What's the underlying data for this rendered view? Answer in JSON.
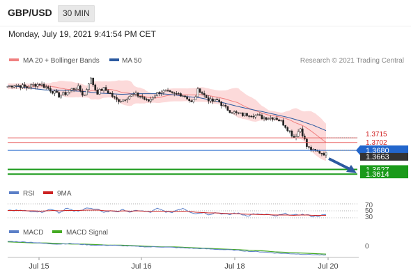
{
  "header": {
    "pair": "GBP/USD",
    "timeframe": "30 MIN"
  },
  "datetime": "Monday, July 19, 2021 9:41:54 PM CET",
  "copyright": "Research © 2021 Trading Central",
  "colors": {
    "bb": "#f08080",
    "ma50": "#2c5aa0",
    "res": "#e86060",
    "pivot": "#2266cc",
    "sup": "#1a9a1a",
    "current": "#333333",
    "rsi": "#5b7fc7",
    "rsi_ma": "#cc2222",
    "macd": "#5b7fc7",
    "signal": "#44aa22"
  },
  "chart_data": [
    {
      "type": "line",
      "legend": [
        "MA 20 + Bollinger Bands",
        "MA 50"
      ],
      "x_ticks": [
        "Jul 15",
        "Jul 16",
        "Jul 18",
        "Jul 20"
      ],
      "ylim": [
        1.3595,
        1.3905
      ],
      "price_anchors": [
        1.3858,
        1.3862,
        1.386,
        1.3855,
        1.3862,
        1.3865,
        1.3857,
        1.3845,
        1.3832,
        1.3838,
        1.385,
        1.3856,
        1.383,
        1.3882,
        1.384,
        1.3852,
        1.384,
        1.382,
        1.382,
        1.3831,
        1.3835,
        1.383,
        1.3815,
        1.3833,
        1.3845,
        1.3842,
        1.3835,
        1.3838,
        1.383,
        1.381,
        1.3852,
        1.383,
        1.3816,
        1.382,
        1.38,
        1.379,
        1.3782,
        1.3779,
        1.3781,
        1.3777,
        1.3772,
        1.3771,
        1.3772,
        1.376,
        1.374,
        1.3715,
        1.3742,
        1.369,
        1.3678,
        1.3675,
        1.367
      ],
      "ma50_anchors": [
        1.386,
        1.3857,
        1.3852,
        1.3848,
        1.3848,
        1.3846,
        1.3844,
        1.384,
        1.3838,
        1.3836,
        1.3838,
        1.3838,
        1.3838,
        1.3835,
        1.383,
        1.3827,
        1.382,
        1.3812,
        1.3803,
        1.3795,
        1.3788,
        1.378,
        1.3772,
        1.3762,
        1.375,
        1.3735
      ],
      "levels": [
        {
          "label": "1.3715",
          "value": 1.3715,
          "kind": "res"
        },
        {
          "label": "1.3702",
          "value": 1.3702,
          "kind": "res"
        },
        {
          "label": "1.3680",
          "value": 1.368,
          "kind": "pivot"
        },
        {
          "label": "1.3663",
          "value": 1.3663,
          "kind": "current"
        },
        {
          "label": "1.3627",
          "value": 1.3627,
          "kind": "sup"
        },
        {
          "label": "1.3614",
          "value": 1.3614,
          "kind": "sup"
        }
      ]
    },
    {
      "type": "line",
      "legend": [
        "RSI",
        "9MA"
      ],
      "levels": [
        "70",
        "50",
        "30"
      ],
      "ylim": [
        20,
        80
      ],
      "rsi": [
        52,
        50,
        54,
        48,
        50,
        46,
        52,
        55,
        44,
        58,
        50,
        48,
        60,
        55,
        52,
        46,
        50,
        48,
        53,
        45,
        52,
        48,
        46,
        56,
        50,
        44,
        52,
        58,
        48,
        42,
        46,
        40,
        45,
        42,
        38,
        44,
        40,
        36,
        42,
        38,
        40,
        34,
        38,
        42,
        36,
        40,
        38,
        34,
        36,
        38
      ],
      "rsi_ma": [
        51,
        51,
        51,
        50,
        50,
        49,
        50,
        51,
        50,
        51,
        51,
        51,
        52,
        52,
        52,
        50,
        50,
        49,
        50,
        49,
        50,
        49,
        48,
        49,
        49,
        48,
        48,
        49,
        48,
        46,
        45,
        44,
        44,
        43,
        42,
        42,
        41,
        40,
        40,
        39,
        39,
        38,
        38,
        38,
        37,
        38,
        38,
        37,
        37,
        37
      ]
    },
    {
      "type": "line",
      "legend": [
        "MACD",
        "MACD Signal"
      ],
      "levels": [
        "0"
      ],
      "ylim": [
        -0.0025,
        0.001
      ],
      "macd": [
        0.0004,
        0.0003,
        0.0002,
        0.0,
        -0.0001,
        0.0,
        -0.0002,
        -0.0003,
        -0.0003,
        -0.0004,
        -0.0005,
        -0.0006,
        -0.0006,
        -0.0007,
        -0.0008,
        -0.0009,
        -0.001,
        -0.0011,
        -0.0012,
        -0.0014,
        -0.0015,
        -0.0017,
        -0.0018,
        -0.0019,
        -0.002,
        -0.0021
      ],
      "signal": [
        0.0003,
        0.0002,
        0.0001,
        0.0001,
        0.0,
        -0.0001,
        -0.0001,
        -0.0002,
        -0.0003,
        -0.0003,
        -0.0004,
        -0.0005,
        -0.0006,
        -0.0006,
        -0.0007,
        -0.0008,
        -0.0009,
        -0.001,
        -0.0011,
        -0.0012,
        -0.0013,
        -0.0015,
        -0.0016,
        -0.0017,
        -0.0018,
        -0.0019
      ]
    }
  ]
}
